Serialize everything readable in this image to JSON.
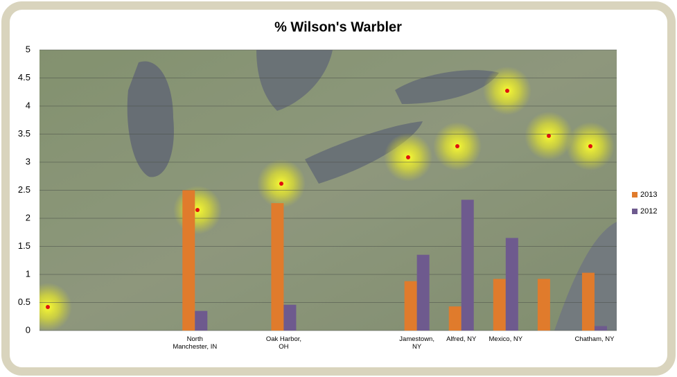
{
  "chart_data": {
    "type": "bar",
    "title": "% Wilson's Warbler",
    "categories": [
      null,
      null,
      null,
      "North Manchester, IN",
      null,
      "Oak Harbor, OH",
      null,
      null,
      "Jamestown, NY",
      "Alfred, NY",
      "Mexico, NY",
      null,
      "Chatham, NY"
    ],
    "series": [
      {
        "name": "2013",
        "color": "#e07b2c",
        "values": [
          null,
          null,
          null,
          2.5,
          null,
          2.27,
          null,
          null,
          0.88,
          0.43,
          0.92,
          0.92,
          1.03
        ]
      },
      {
        "name": "2012",
        "color": "#6e5a8e",
        "values": [
          null,
          null,
          null,
          0.35,
          null,
          0.46,
          null,
          null,
          1.35,
          2.33,
          1.65,
          null,
          0.08
        ]
      }
    ],
    "ylim": [
      0,
      5
    ],
    "yticks": [
      0,
      0.5,
      1,
      1.5,
      2,
      2.5,
      3,
      3.5,
      4,
      4.5,
      5
    ],
    "grid": true,
    "legend": "right"
  }
}
